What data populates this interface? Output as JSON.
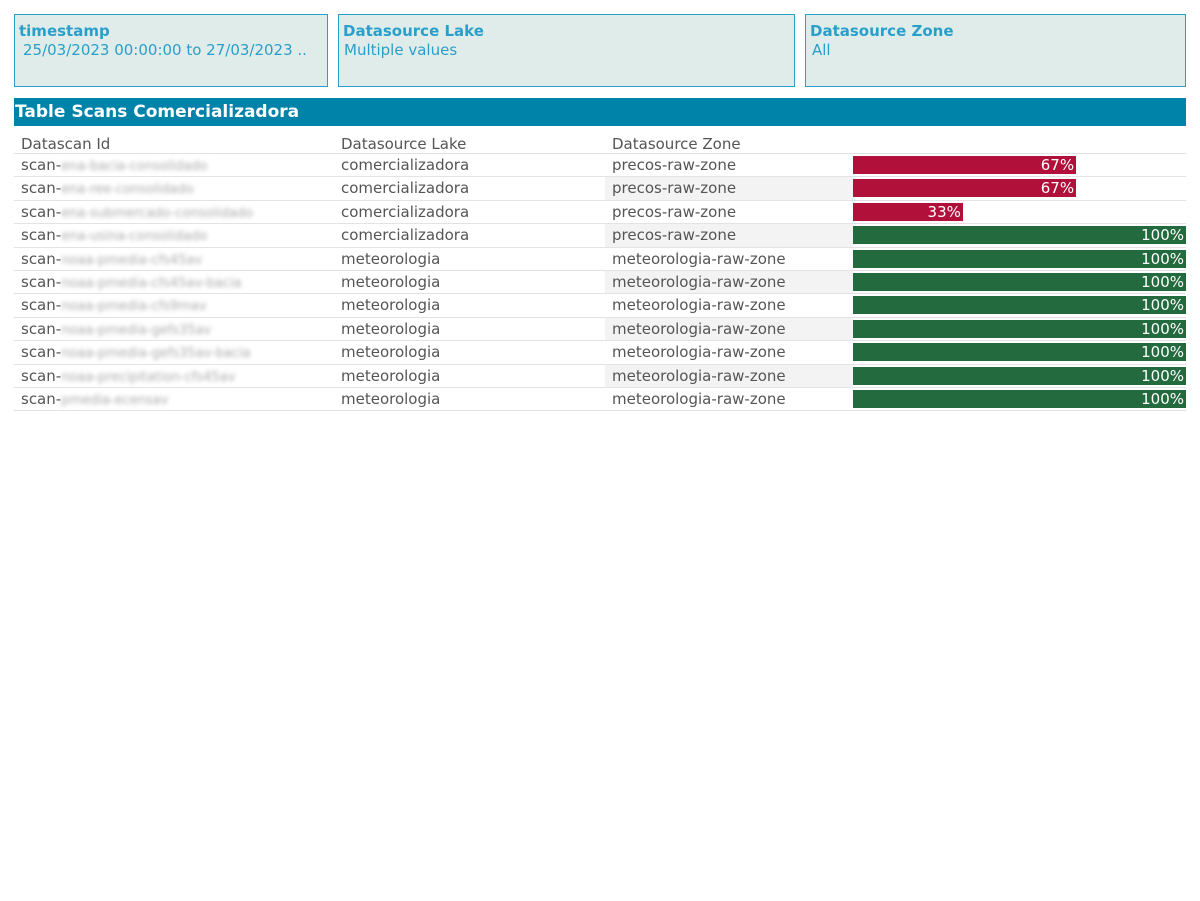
{
  "filters": [
    {
      "title": "timestamp",
      "value": "25/03/2023 00:00:00 to 27/03/2023 .."
    },
    {
      "title": "Datasource Lake",
      "value": "Multiple values"
    },
    {
      "title": "Datasource Zone",
      "value": "All"
    }
  ],
  "table": {
    "title": "Table Scans Comercializadora",
    "columns": [
      "Datascan Id",
      "Datasource Lake",
      "Datasource Zone",
      ""
    ],
    "colors": {
      "low": "#b0103a",
      "ok": "#236b3f"
    },
    "rows": [
      {
        "id_prefix": "scan-",
        "id_rest": "ena-bacia-consolidado",
        "lake": "comercializadora",
        "zone": "precos-raw-zone",
        "pct_label": "67%",
        "pct": 0.67,
        "status": "low"
      },
      {
        "id_prefix": "scan-",
        "id_rest": "ena-ree-consolidado",
        "lake": "comercializadora",
        "zone": "precos-raw-zone",
        "pct_label": "67%",
        "pct": 0.67,
        "status": "low"
      },
      {
        "id_prefix": "scan-",
        "id_rest": "ena-submercado-consolidado",
        "lake": "comercializadora",
        "zone": "precos-raw-zone",
        "pct_label": "33%",
        "pct": 0.33,
        "status": "low"
      },
      {
        "id_prefix": "scan-",
        "id_rest": "ena-usina-consolidado",
        "lake": "comercializadora",
        "zone": "precos-raw-zone",
        "pct_label": "100%",
        "pct": 1.0,
        "status": "ok"
      },
      {
        "id_prefix": "scan-",
        "id_rest": "noaa-pmedia-cfs45av",
        "lake": "meteorologia",
        "zone": "meteorologia-raw-zone",
        "pct_label": "100%",
        "pct": 1.0,
        "status": "ok"
      },
      {
        "id_prefix": "scan-",
        "id_rest": "noaa-pmedia-cfs45av-bacia",
        "lake": "meteorologia",
        "zone": "meteorologia-raw-zone",
        "pct_label": "100%",
        "pct": 1.0,
        "status": "ok"
      },
      {
        "id_prefix": "scan-",
        "id_rest": "noaa-pmedia-cfs9mav",
        "lake": "meteorologia",
        "zone": "meteorologia-raw-zone",
        "pct_label": "100%",
        "pct": 1.0,
        "status": "ok"
      },
      {
        "id_prefix": "scan-",
        "id_rest": "noaa-pmedia-gefs35av",
        "lake": "meteorologia",
        "zone": "meteorologia-raw-zone",
        "pct_label": "100%",
        "pct": 1.0,
        "status": "ok"
      },
      {
        "id_prefix": "scan-",
        "id_rest": "noaa-pmedia-gefs35av-bacia",
        "lake": "meteorologia",
        "zone": "meteorologia-raw-zone",
        "pct_label": "100%",
        "pct": 1.0,
        "status": "ok"
      },
      {
        "id_prefix": "scan-",
        "id_rest": "noaa-precipitation-cfs45av",
        "lake": "meteorologia",
        "zone": "meteorologia-raw-zone",
        "pct_label": "100%",
        "pct": 1.0,
        "status": "ok"
      },
      {
        "id_prefix": "scan-",
        "id_rest": "pmedia-ecensav",
        "lake": "meteorologia",
        "zone": "meteorologia-raw-zone",
        "pct_label": "100%",
        "pct": 1.0,
        "status": "ok"
      }
    ]
  }
}
